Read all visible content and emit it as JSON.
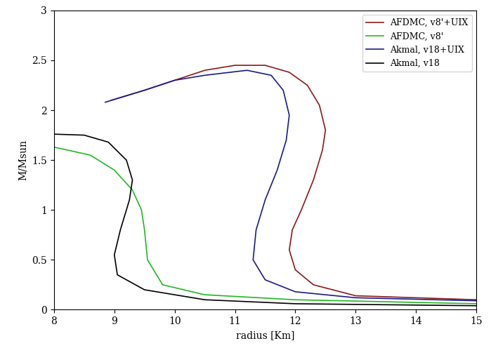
{
  "chart_data": {
    "type": "line",
    "x_label": "radius [Km]",
    "y_label": "M/Msun",
    "xlim": [
      8,
      15
    ],
    "xticks": [
      8,
      9,
      10,
      11,
      12,
      13,
      14,
      15
    ],
    "ylim": [
      0,
      3
    ],
    "yticks": [
      0,
      0.5,
      1,
      1.5,
      2,
      2.5,
      3
    ],
    "grid": false,
    "legend": "upper right",
    "series": [
      {
        "name": "AFDMC, v8'+UIX",
        "color": "#8b1a1a",
        "x": [
          15,
          13,
          12.3,
          12.0,
          11.9,
          11.95,
          12.1,
          12.3,
          12.45,
          12.5,
          12.4,
          12.2,
          11.9,
          11.5,
          11.0,
          10.5,
          10.0,
          9.5,
          8.95
        ],
        "values": [
          0.1,
          0.14,
          0.25,
          0.4,
          0.6,
          0.8,
          1.0,
          1.3,
          1.6,
          1.8,
          2.05,
          2.25,
          2.38,
          2.45,
          2.45,
          2.4,
          2.3,
          2.2,
          2.1
        ]
      },
      {
        "name": "AFDMC, v8'",
        "color": "#22b822",
        "x": [
          15,
          12,
          10.5,
          9.8,
          9.55,
          9.5,
          9.45,
          9.3,
          9.0,
          8.6,
          8.0
        ],
        "values": [
          0.06,
          0.1,
          0.15,
          0.25,
          0.5,
          0.8,
          1.0,
          1.2,
          1.4,
          1.55,
          1.63
        ]
      },
      {
        "name": "Akmal, v18+UIX",
        "color": "#1a1a8b",
        "x": [
          15,
          13,
          12,
          11.5,
          11.3,
          11.35,
          11.5,
          11.7,
          11.85,
          11.9,
          11.8,
          11.6,
          11.2,
          10.5,
          10.0,
          9.5,
          8.85
        ],
        "values": [
          0.09,
          0.12,
          0.18,
          0.3,
          0.5,
          0.8,
          1.1,
          1.4,
          1.7,
          1.95,
          2.2,
          2.35,
          2.4,
          2.35,
          2.3,
          2.2,
          2.08
        ]
      },
      {
        "name": "Akmal, v18",
        "color": "#000000",
        "x": [
          15,
          12,
          10.5,
          9.5,
          9.05,
          9.0,
          9.1,
          9.25,
          9.3,
          9.2,
          8.9,
          8.5,
          8.0
        ],
        "values": [
          0.04,
          0.06,
          0.1,
          0.2,
          0.35,
          0.55,
          0.8,
          1.1,
          1.3,
          1.5,
          1.68,
          1.75,
          1.76
        ]
      }
    ]
  }
}
